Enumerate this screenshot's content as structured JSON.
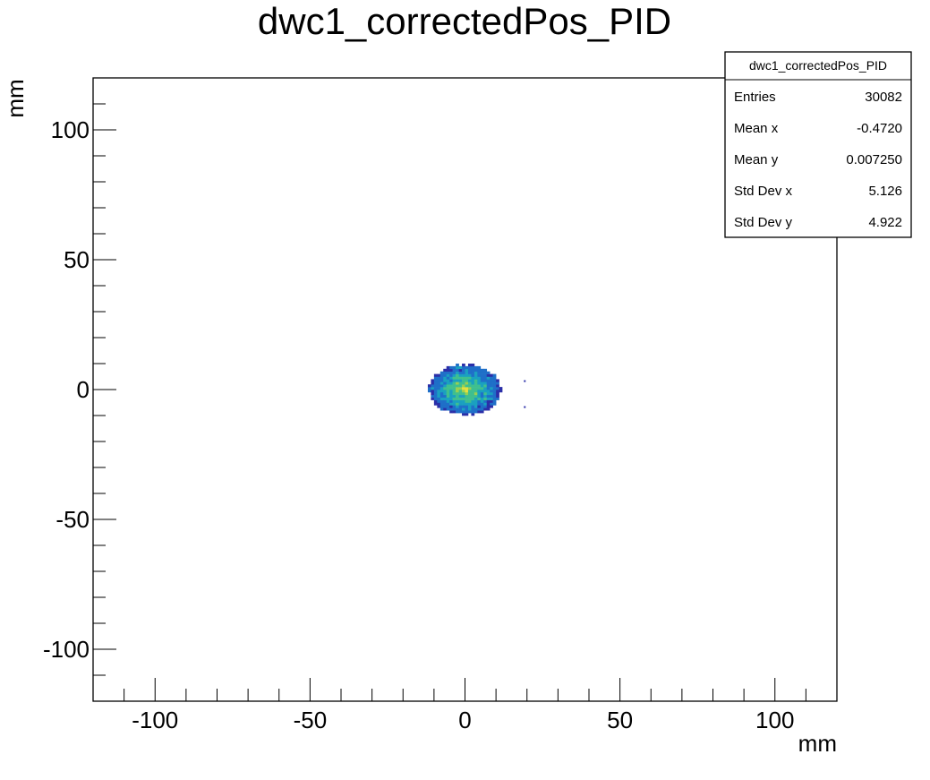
{
  "chart_data": {
    "type": "heatmap",
    "title": "dwc1_correctedPos_PID",
    "xlabel": "mm",
    "ylabel": "mm",
    "xlim": [
      -120,
      120
    ],
    "ylim": [
      -120,
      120
    ],
    "x_ticks": [
      -100,
      -50,
      0,
      50,
      100
    ],
    "y_ticks": [
      -100,
      -50,
      0,
      50,
      100
    ],
    "x_tick_labels": [
      "-100",
      "-50",
      "0",
      "50",
      "100"
    ],
    "y_tick_labels": [
      "-100",
      "-50",
      "0",
      "50",
      "100"
    ],
    "grid": false,
    "colormap": [
      "#2b2fa8",
      "#1f6fc8",
      "#1aa0c0",
      "#3fbf8f",
      "#9ad050",
      "#e6e040"
    ],
    "distribution": {
      "center_x": -0.472,
      "center_y": 0.00725,
      "extent_x": [
        -12,
        12
      ],
      "extent_y": [
        -10,
        10
      ],
      "bin_size": 1
    },
    "stats_box": {
      "name": "dwc1_correctedPos_PID",
      "placement": "top-right",
      "rows": [
        {
          "label": "Entries",
          "value": "30082"
        },
        {
          "label": "Mean x",
          "value": "-0.4720"
        },
        {
          "label": "Mean y",
          "value": "0.007250"
        },
        {
          "label": "Std Dev x",
          "value": "5.126"
        },
        {
          "label": "Std Dev y",
          "value": "4.922"
        }
      ]
    }
  }
}
